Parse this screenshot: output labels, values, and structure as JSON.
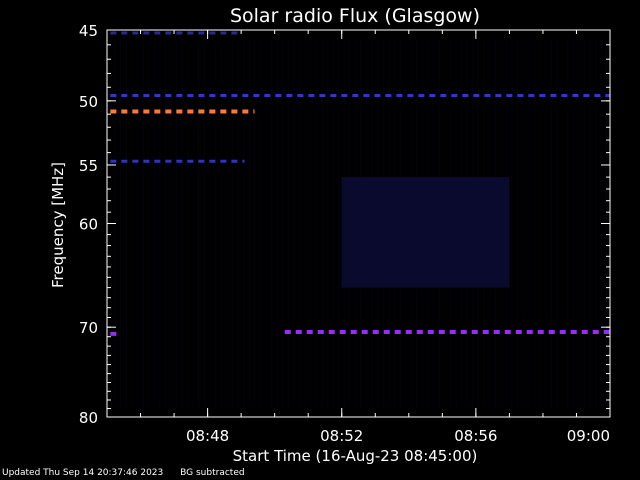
{
  "chart_data": {
    "type": "heatmap",
    "title": "Solar radio Flux (Glasgow)",
    "ylabel": "Frequency [MHz]",
    "xlabel": "Start Time (16-Aug-23 08:45:00)",
    "x_unit": "minutes after 08:45:00",
    "xlim": [
      0,
      15
    ],
    "ylim": [
      45,
      80
    ],
    "y_scale": "log",
    "y_inverted": true,
    "x_ticks": [
      {
        "value": 3,
        "label": "08:48"
      },
      {
        "value": 7,
        "label": "08:52"
      },
      {
        "value": 11,
        "label": "08:56"
      },
      {
        "value": 15,
        "label": "09:00"
      }
    ],
    "y_ticks": [
      {
        "value": 45,
        "label": "45"
      },
      {
        "value": 50,
        "label": "50"
      },
      {
        "value": 55,
        "label": "55"
      },
      {
        "value": 60,
        "label": "60"
      },
      {
        "value": 70,
        "label": "70"
      },
      {
        "value": 80,
        "label": "80"
      }
    ],
    "emission_bands": [
      {
        "freq_mhz": 45.2,
        "t_start": 0.1,
        "t_end": 3.9,
        "color": "#2a2a8a"
      },
      {
        "freq_mhz": 49.6,
        "t_start": 0.1,
        "t_end": 15.0,
        "color": "#3535c8"
      },
      {
        "freq_mhz": 50.8,
        "t_start": 0.1,
        "t_end": 4.4,
        "color": "#ff7a3a"
      },
      {
        "freq_mhz": 54.7,
        "t_start": 0.1,
        "t_end": 4.1,
        "color": "#3232c0"
      },
      {
        "freq_mhz": 70.5,
        "t_start": 5.3,
        "t_end": 15.0,
        "color": "#9a2aff"
      },
      {
        "freq_mhz": 70.7,
        "t_start": 0.1,
        "t_end": 0.3,
        "color": "#9a2aff"
      }
    ],
    "background_regions": [
      {
        "t_start": 7.0,
        "t_end": 12.0,
        "f_low": 56.0,
        "f_high": 66.0,
        "color": "#0d0d3a"
      }
    ]
  },
  "footer": {
    "updated": "Updated Thu Sep 14 20:37:46 2023",
    "note": "BG subtracted"
  }
}
